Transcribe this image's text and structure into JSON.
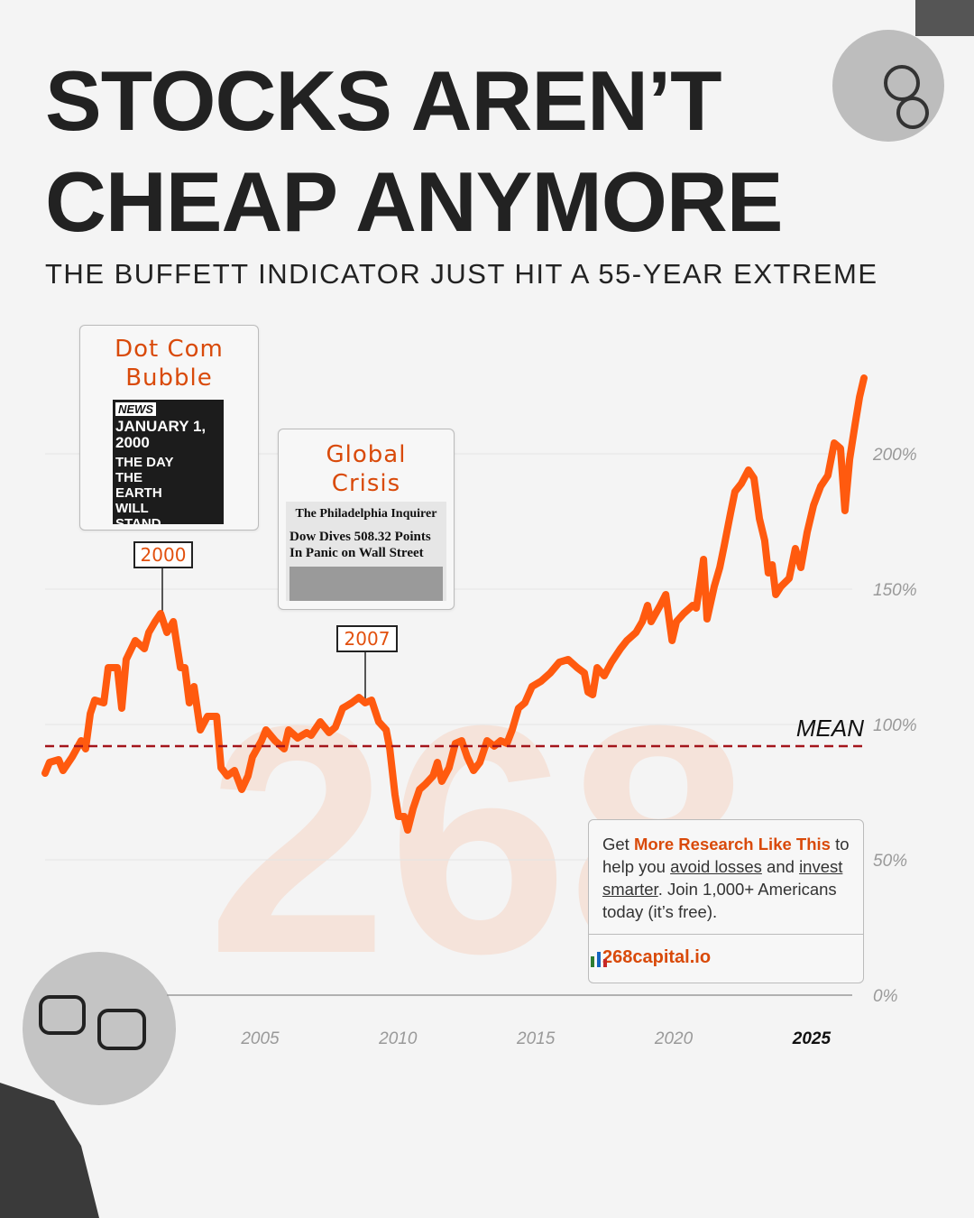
{
  "chart_data": {
    "type": "line",
    "title_lines": [
      "STOCKS AREN’T",
      "CHEAP ANYMORE"
    ],
    "subtitle": "THE BUFFETT INDICATOR JUST HIT A 55-YEAR EXTREME",
    "watermark": "268",
    "color": "#ff5a0f",
    "grid": true,
    "xlim": [
      1997.2,
      2026.9
    ],
    "xticks": [
      2005,
      2010,
      2015,
      2020,
      2025
    ],
    "ylim": [
      0,
      230
    ],
    "yticks": [
      {
        "value": 0,
        "label": "0%"
      },
      {
        "value": 50,
        "label": "50%"
      },
      {
        "value": 100,
        "label": "100%"
      },
      {
        "value": 150,
        "label": "150%"
      },
      {
        "value": 200,
        "label": "200%"
      }
    ],
    "mean": {
      "value": 92,
      "label": "MEAN",
      "color": "#a3151b"
    },
    "x": [
      1997.2,
      1997.36,
      1997.69,
      1997.85,
      1998.18,
      1998.51,
      1998.67,
      1998.84,
      1999.0,
      1999.33,
      1999.49,
      1999.82,
      1999.98,
      2000.14,
      2000.47,
      2000.8,
      2000.96,
      2001.19,
      2001.39,
      2001.62,
      2001.85,
      2002.11,
      2002.27,
      2002.43,
      2002.6,
      2002.83,
      2003.09,
      2003.42,
      2003.58,
      2003.81,
      2004.07,
      2004.33,
      2004.56,
      2004.72,
      2005.05,
      2005.21,
      2005.54,
      2005.87,
      2006.03,
      2006.36,
      2006.69,
      2006.85,
      2007.18,
      2007.5,
      2007.73,
      2007.99,
      2008.32,
      2008.58,
      2008.81,
      2009.04,
      2009.3,
      2009.57,
      2009.7,
      2009.89,
      2010.02,
      2010.22,
      2010.35,
      2010.55,
      2010.78,
      2011.0,
      2011.27,
      2011.43,
      2011.59,
      2011.85,
      2012.08,
      2012.31,
      2012.51,
      2012.74,
      2012.97,
      2013.23,
      2013.49,
      2013.72,
      2013.95,
      2014.14,
      2014.37,
      2014.6,
      2014.86,
      2015.19,
      2015.52,
      2015.85,
      2016.17,
      2016.5,
      2016.76,
      2016.89,
      2017.06,
      2017.22,
      2017.48,
      2017.74,
      2018.07,
      2018.3,
      2018.63,
      2018.86,
      2019.05,
      2019.18,
      2019.51,
      2019.71,
      2019.94,
      2020.1,
      2020.36,
      2020.69,
      2020.82,
      2021.08,
      2021.21,
      2021.47,
      2021.67,
      2021.83,
      2022.06,
      2022.22,
      2022.45,
      2022.71,
      2022.91,
      2023.11,
      2023.3,
      2023.43,
      2023.57,
      2023.7,
      2023.89,
      2024.19,
      2024.41,
      2024.61,
      2024.84,
      2025.07,
      2025.33,
      2025.59,
      2025.82,
      2026.05,
      2026.21,
      2026.38,
      2026.58,
      2026.74,
      2026.9
    ],
    "values": [
      82,
      86,
      87,
      83,
      88,
      94,
      91,
      104,
      109,
      108,
      121,
      121,
      106,
      124,
      131,
      128,
      134,
      138,
      141,
      134,
      138,
      121,
      121,
      108,
      114,
      98,
      103,
      103,
      84,
      81,
      83,
      76,
      81,
      88,
      94,
      98,
      94,
      91,
      98,
      95,
      97,
      96,
      101,
      97,
      99,
      106,
      108,
      110,
      108,
      109,
      101,
      98,
      91,
      74,
      66,
      66,
      61,
      69,
      76,
      78,
      81,
      86,
      79,
      84,
      93,
      94,
      88,
      83,
      86,
      94,
      92,
      94,
      93,
      98,
      106,
      108,
      114,
      116,
      119,
      123,
      124,
      121,
      119,
      112,
      111,
      121,
      118,
      123,
      128,
      131,
      134,
      138,
      144,
      138,
      144,
      148,
      131,
      138,
      141,
      144,
      143,
      161,
      139,
      151,
      158,
      166,
      178,
      186,
      189,
      194,
      191,
      176,
      168,
      156,
      159,
      148,
      151,
      154,
      165,
      158,
      171,
      181,
      188,
      192,
      204,
      202,
      179,
      198,
      211,
      221,
      228
    ],
    "annotations": [
      {
        "title": "Dot Com Bubble",
        "label": "2000",
        "paper": [
          "NEWS",
          "JANUARY 1, 2000",
          "THE DAY THE EARTH WILL STAND STILL!"
        ]
      },
      {
        "title": "Global Crisis",
        "label": "2007",
        "paper": [
          "The Philadelphia Inquirer",
          "Dow Dives 508.32 Points",
          "In Panic on Wall Street"
        ]
      }
    ],
    "callout": {
      "segments": [
        "Get ",
        "More Research Like This",
        " to help you ",
        "avoid losses",
        " and ",
        "invest smarter",
        ". Join 1,000+ Americans today (it’s free)."
      ],
      "link": "268capital.io"
    }
  }
}
